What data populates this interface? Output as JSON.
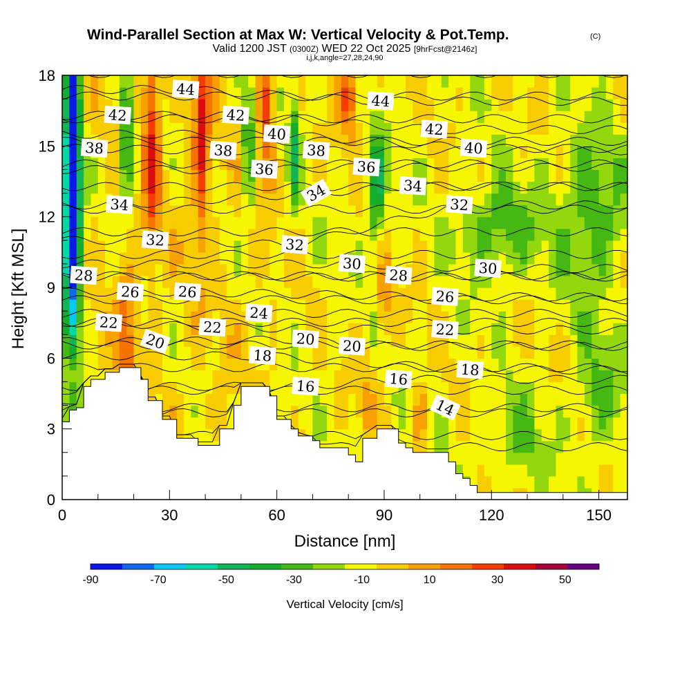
{
  "chart_data": {
    "type": "heatmap",
    "title": "Wind-Parallel Section at Max W: Vertical Velocity & Pot.Temp.",
    "title_mark": "(C)",
    "subtitle_parts": [
      "Valid 1200 JST",
      "(0300Z)",
      "WED 22 Oct 2025",
      "[9hrFcst@2146z]"
    ],
    "subtitle2": "i,j,k,angle=27,28,24,90",
    "xlabel": "Distance [nm]",
    "ylabel": "Height [Kft MSL]",
    "xlim": [
      0,
      158
    ],
    "ylim": [
      0,
      18
    ],
    "x_ticks": [
      "0",
      "30",
      "60",
      "90",
      "120",
      "150"
    ],
    "y_ticks": [
      "0",
      "3",
      "6",
      "9",
      "12",
      "15",
      "18"
    ],
    "colorbar": {
      "label": "Vertical Velocity [cm/s]",
      "ticks": [
        "-90",
        "-70",
        "-50",
        "-30",
        "-10",
        "10",
        "30",
        "50"
      ],
      "bins": [
        -90,
        -80,
        -70,
        -60,
        -50,
        -40,
        -30,
        -20,
        -10,
        0,
        10,
        20,
        30,
        40,
        50,
        60
      ],
      "colors": [
        "#0b16e8",
        "#0f67f2",
        "#06c8f2",
        "#00d8a8",
        "#12b556",
        "#15ad2c",
        "#46b814",
        "#93d70e",
        "#f6f600",
        "#f7cd00",
        "#f7a000",
        "#f57300",
        "#f53c00",
        "#dc0d10",
        "#a4003c",
        "#65007f"
      ]
    },
    "terrain_kft": [
      [
        0,
        3.3
      ],
      [
        1,
        3.3
      ],
      [
        2,
        3.8
      ],
      [
        4,
        3.9
      ],
      [
        6,
        4.8
      ],
      [
        8,
        5.1
      ],
      [
        10,
        5.1
      ],
      [
        12,
        5.4
      ],
      [
        14,
        5.4
      ],
      [
        16,
        5.6
      ],
      [
        20,
        5.6
      ],
      [
        22,
        5.1
      ],
      [
        24,
        4.2
      ],
      [
        26,
        4.2
      ],
      [
        28,
        3.4
      ],
      [
        30,
        3.4
      ],
      [
        32,
        2.6
      ],
      [
        36,
        2.6
      ],
      [
        38,
        2.3
      ],
      [
        42,
        2.3
      ],
      [
        44,
        3.0
      ],
      [
        46,
        3.0
      ],
      [
        48,
        4.0
      ],
      [
        50,
        4.8
      ],
      [
        56,
        4.8
      ],
      [
        58,
        4.4
      ],
      [
        60,
        3.4
      ],
      [
        62,
        3.4
      ],
      [
        64,
        3.0
      ],
      [
        66,
        2.7
      ],
      [
        70,
        2.5
      ],
      [
        72,
        2.2
      ],
      [
        78,
        2.2
      ],
      [
        80,
        1.9
      ],
      [
        82,
        1.6
      ],
      [
        84,
        2.6
      ],
      [
        88,
        3.0
      ],
      [
        92,
        3.0
      ],
      [
        94,
        2.4
      ],
      [
        96,
        2.2
      ],
      [
        98,
        2.0
      ],
      [
        106,
        2.0
      ],
      [
        108,
        1.6
      ],
      [
        110,
        1.1
      ],
      [
        112,
        0.9
      ],
      [
        114,
        0.6
      ],
      [
        116,
        0.3
      ],
      [
        158,
        0.3
      ]
    ],
    "anomalies": [
      {
        "x": 3,
        "y": 14.0,
        "sx": 1.8,
        "sy": 7.0,
        "w": -85
      },
      {
        "x": 2,
        "y": 11.0,
        "sx": 3.5,
        "sy": 6.5,
        "w": -40
      },
      {
        "x": 18,
        "y": 15.5,
        "sx": 2.0,
        "sy": 2.8,
        "w": -42
      },
      {
        "x": 25,
        "y": 15.5,
        "sx": 2.2,
        "sy": 4.5,
        "w": 42
      },
      {
        "x": 39,
        "y": 15.5,
        "sx": 2.2,
        "sy": 4.5,
        "w": 42
      },
      {
        "x": 52,
        "y": 15.0,
        "sx": 1.8,
        "sy": 2.8,
        "w": -35
      },
      {
        "x": 57,
        "y": 16.5,
        "sx": 2.0,
        "sy": 2.5,
        "w": 40
      },
      {
        "x": 65,
        "y": 15.0,
        "sx": 1.5,
        "sy": 2.3,
        "w": -35
      },
      {
        "x": 88,
        "y": 13.2,
        "sx": 2.2,
        "sy": 2.5,
        "w": -42
      },
      {
        "x": 80,
        "y": 17.3,
        "sx": 2.8,
        "sy": 1.8,
        "w": 38
      },
      {
        "x": 122,
        "y": 11.5,
        "sx": 11.0,
        "sy": 2.0,
        "w": -25
      },
      {
        "x": 148,
        "y": 12.0,
        "sx": 9.0,
        "sy": 3.5,
        "w": -25
      },
      {
        "x": 150,
        "y": 4.5,
        "sx": 7.0,
        "sy": 2.5,
        "w": -18
      },
      {
        "x": 128,
        "y": 2.5,
        "sx": 7.0,
        "sy": 2.0,
        "w": -16
      },
      {
        "x": 18,
        "y": 7.0,
        "sx": 2.5,
        "sy": 3.0,
        "w": 28
      },
      {
        "x": 90,
        "y": 8.5,
        "sx": 2.0,
        "sy": 2.0,
        "w": 25
      },
      {
        "x": 100,
        "y": 3.5,
        "sx": 2.0,
        "sy": 1.5,
        "w": 20
      },
      {
        "x": 85,
        "y": 4.0,
        "sx": 2.0,
        "sy": 1.5,
        "w": 18
      },
      {
        "x": 3,
        "y": 5.5,
        "sx": 2.0,
        "sy": 1.2,
        "w": 20
      }
    ],
    "isentrope_labels": [
      {
        "text": "42",
        "x": 15.5,
        "y": 16.3
      },
      {
        "text": "44",
        "x": 34.5,
        "y": 17.4
      },
      {
        "text": "42",
        "x": 48.5,
        "y": 16.3
      },
      {
        "text": "40",
        "x": 60,
        "y": 15.5
      },
      {
        "text": "44",
        "x": 89,
        "y": 16.9
      },
      {
        "text": "42",
        "x": 104,
        "y": 15.7
      },
      {
        "text": "40",
        "x": 115,
        "y": 14.9
      },
      {
        "text": "38",
        "x": 9,
        "y": 14.9
      },
      {
        "text": "38",
        "x": 45,
        "y": 14.8
      },
      {
        "text": "38",
        "x": 71,
        "y": 14.8
      },
      {
        "text": "36",
        "x": 56.5,
        "y": 14.0
      },
      {
        "text": "36",
        "x": 85,
        "y": 14.1
      },
      {
        "text": "34",
        "x": 16,
        "y": 12.5
      },
      {
        "text": "34",
        "x": 71,
        "y": 13.0
      },
      {
        "text": "34",
        "x": 98,
        "y": 13.3
      },
      {
        "text": "32",
        "x": 111,
        "y": 12.5
      },
      {
        "text": "32",
        "x": 26,
        "y": 11.0
      },
      {
        "text": "32",
        "x": 65,
        "y": 10.8
      },
      {
        "text": "30",
        "x": 81,
        "y": 10.0
      },
      {
        "text": "30",
        "x": 119,
        "y": 9.8
      },
      {
        "text": "28",
        "x": 6,
        "y": 9.5
      },
      {
        "text": "28",
        "x": 94,
        "y": 9.5
      },
      {
        "text": "26",
        "x": 19,
        "y": 8.8
      },
      {
        "text": "26",
        "x": 35,
        "y": 8.8
      },
      {
        "text": "26",
        "x": 107,
        "y": 8.6
      },
      {
        "text": "24",
        "x": 55,
        "y": 7.9
      },
      {
        "text": "22",
        "x": 13,
        "y": 7.5
      },
      {
        "text": "22",
        "x": 42,
        "y": 7.3
      },
      {
        "text": "22",
        "x": 107,
        "y": 7.2
      },
      {
        "text": "20",
        "x": 26,
        "y": 6.7
      },
      {
        "text": "20",
        "x": 68,
        "y": 6.8
      },
      {
        "text": "20",
        "x": 81,
        "y": 6.5
      },
      {
        "text": "18",
        "x": 56,
        "y": 6.1
      },
      {
        "text": "18",
        "x": 114,
        "y": 5.5
      },
      {
        "text": "16",
        "x": 68,
        "y": 4.8
      },
      {
        "text": "16",
        "x": 94,
        "y": 5.1
      },
      {
        "text": "14",
        "x": 107,
        "y": 3.9
      }
    ],
    "grid": false
  }
}
